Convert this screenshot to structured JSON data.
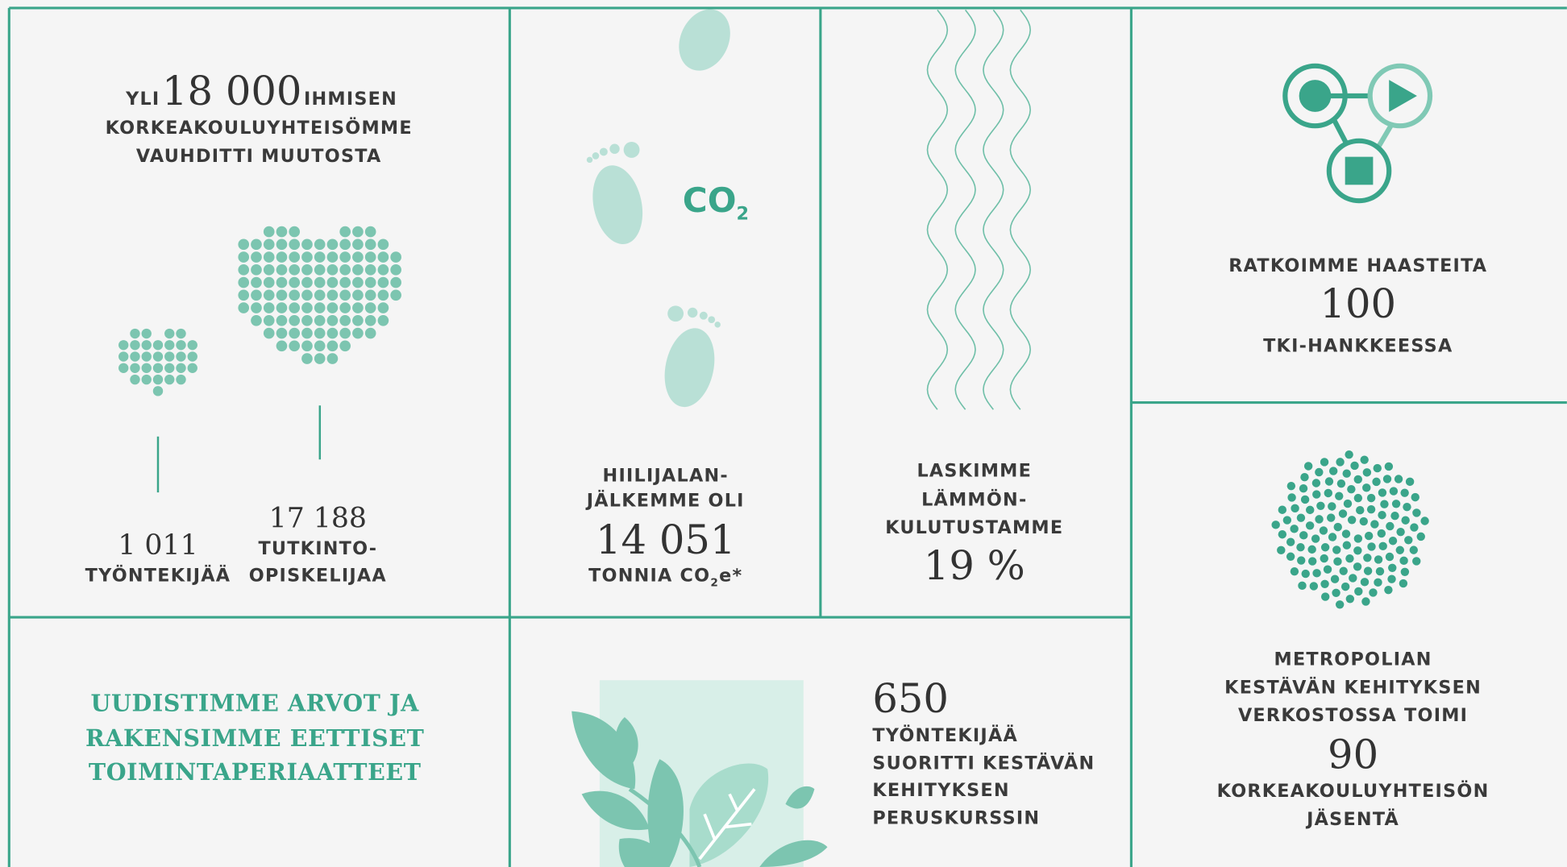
{
  "community": {
    "prefix": "YLI",
    "number": "18 000",
    "suffix": "IHMISEN",
    "lines": [
      "KORKEAKOULUYHTEISÖMME",
      "VAUHDITTI MUUTOSTA"
    ],
    "staff": {
      "number": "1 011",
      "label": "TYÖNTEKIJÄÄ"
    },
    "students": {
      "number": "17 188",
      "lines": [
        "TUTKINTO-",
        "OPISKELIJAA"
      ]
    }
  },
  "carbon": {
    "icon": {
      "text": "CO",
      "sub": "2"
    },
    "lines": [
      "HIILIJALAN-",
      "JÄLKEMME OLI"
    ],
    "number": "14 051",
    "unit": {
      "text": "TONNIA CO",
      "sub": "2",
      "tail": "e*"
    }
  },
  "heat": {
    "lines": [
      "LASKIMME",
      "LÄMMÖN-",
      "KULUTUSTAMME"
    ],
    "number": "19 %"
  },
  "projects": {
    "line": "RATKOIMME HAASTEITA",
    "number": "100",
    "label": "TKI-HANKKEESSA"
  },
  "values": {
    "lines": [
      "UUDISTIMME ARVOT JA",
      "RAKENSIMME EETTISET",
      "TOIMINTAPERIAATTEET"
    ]
  },
  "course": {
    "number": "650",
    "lines": [
      "TYÖNTEKIJÄÄ",
      "SUORITTI KESTÄVÄN",
      "KEHITYKSEN",
      "PERUSKURSSIN"
    ]
  },
  "network": {
    "lines": [
      "METROPOLIAN",
      "KESTÄVÄN KEHITYKSEN",
      "VERKOSTOSSA TOIMI"
    ],
    "number": "90",
    "after": [
      "KORKEAKOULUYHTEISÖN",
      "JÄSENTÄ"
    ]
  }
}
